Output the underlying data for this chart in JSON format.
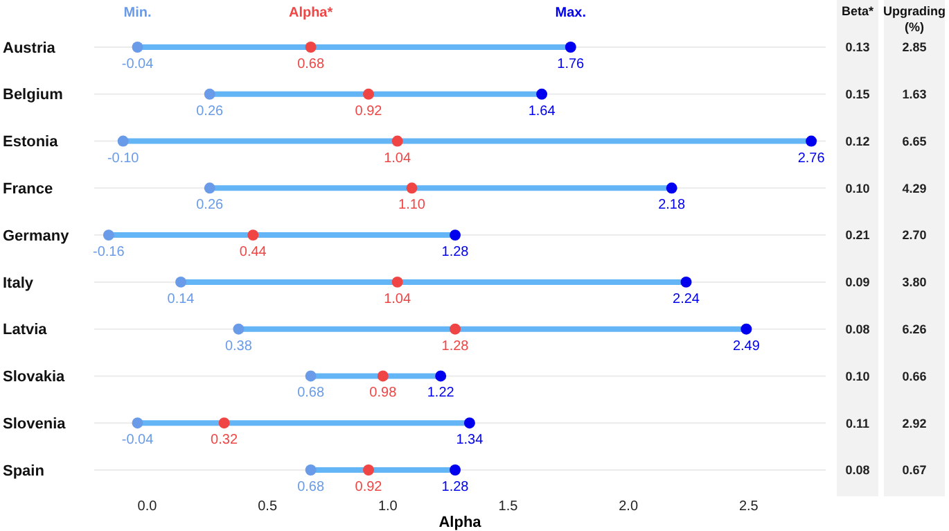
{
  "chart_data": [
    {
      "type": "scatter",
      "orientation": "horizontal",
      "xlabel": "Alpha",
      "categories": [
        "Austria",
        "Belgium",
        "Estonia",
        "France",
        "Germany",
        "Italy",
        "Latvia",
        "Slovakia",
        "Slovenia",
        "Spain"
      ],
      "xlim": [
        -0.22,
        2.82
      ],
      "xticks": [
        {
          "value": 0,
          "label": "0.0"
        },
        0.5,
        {
          "value": 1,
          "label": "1.0"
        },
        1.5,
        {
          "value": 2,
          "label": "2.0"
        },
        2.5
      ],
      "grid": "y",
      "legend": "top",
      "marker": "circle",
      "series": [
        {
          "type": "bar",
          "color": "#64b5f6",
          "base": [
            -0.04,
            0.26,
            -0.1,
            0.26,
            -0.16,
            0.14,
            0.38,
            0.68,
            -0.04,
            0.68
          ],
          "values": [
            1.8,
            1.38,
            2.86,
            1.92,
            1.44,
            2.1,
            2.11,
            0.54,
            1.38,
            0.6
          ]
        },
        {
          "name": "Min.",
          "color": "#6a9be8",
          "values": [
            -0.04,
            0.26,
            -0.1,
            0.26,
            -0.16,
            0.14,
            0.38,
            0.68,
            -0.04,
            0.68
          ],
          "value_labels": [
            "-0.04",
            "0.26",
            "-0.10",
            "0.26",
            "-0.16",
            "0.14",
            "0.38",
            "0.68",
            "-0.04",
            "0.68"
          ]
        },
        {
          "name": "Alpha*",
          "color": "#f04545",
          "values": [
            0.68,
            0.92,
            1.04,
            1.1,
            0.44,
            1.04,
            1.28,
            0.98,
            0.32,
            0.92
          ],
          "value_labels": [
            "0.68",
            "0.92",
            "1.04",
            "1.10",
            "0.44",
            "1.04",
            "1.28",
            "0.98",
            "0.32",
            "0.92"
          ]
        },
        {
          "name": "Max.",
          "color": "#0000ee",
          "values": [
            1.76,
            1.64,
            2.76,
            2.18,
            1.28,
            2.24,
            2.49,
            1.22,
            1.34,
            1.28
          ],
          "value_labels": [
            "1.76",
            "1.64",
            "2.76",
            "2.18",
            "1.28",
            "2.24",
            "2.49",
            "1.22",
            "1.34",
            "1.28"
          ]
        }
      ]
    },
    {
      "type": "other",
      "annotations": [
        "Beta*",
        "Upgrading (%)",
        "0.13",
        "2.85",
        "0.15",
        "1.63",
        "0.12",
        "6.65",
        "0.10",
        "4.29",
        "0.21",
        "2.70",
        "0.09",
        "3.80",
        "0.08",
        "6.26",
        "0.10",
        "0.66",
        "0.11",
        "2.92",
        "0.08",
        "0.67"
      ]
    }
  ]
}
